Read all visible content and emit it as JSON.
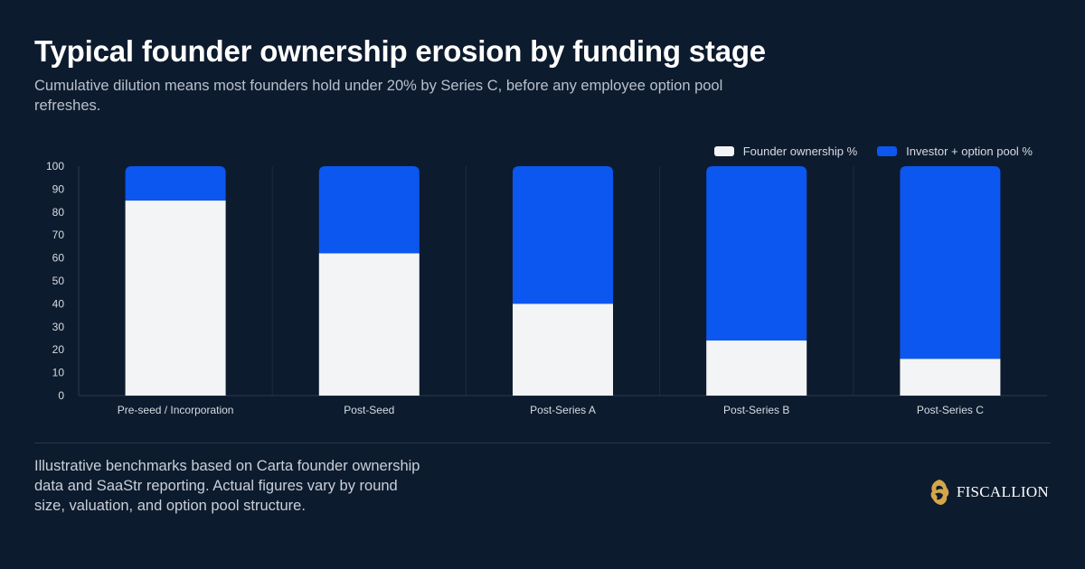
{
  "header": {
    "title": "Typical founder ownership erosion by funding stage",
    "subtitle": "Cumulative dilution means most founders hold under 20% by Series C, before any employee option pool refreshes."
  },
  "chart_data": {
    "type": "bar",
    "stacked": true,
    "categories": [
      "Pre-seed / Incorporation",
      "Post-Seed",
      "Post-Series A",
      "Post-Series B",
      "Post-Series C"
    ],
    "series": [
      {
        "name": "Founder ownership %",
        "values": [
          85,
          62,
          40,
          24,
          16
        ],
        "color": "#f3f4f6"
      },
      {
        "name": "Investor + option pool %",
        "values": [
          15,
          38,
          60,
          76,
          84
        ],
        "color": "#0b57ef"
      }
    ],
    "yticks": [
      "0",
      "10",
      "20",
      "30",
      "40",
      "50",
      "60",
      "70",
      "80",
      "90",
      "100"
    ],
    "ylim": [
      0,
      100
    ],
    "legend_position": "top-right",
    "grid": "vertical-separators"
  },
  "footer": {
    "note": "Illustrative benchmarks based on Carta founder ownership data and SaaStr reporting. Actual figures vary by round size, valuation, and option pool structure.",
    "brand": "FISCALLION",
    "brand_color": "#d4a64a"
  }
}
